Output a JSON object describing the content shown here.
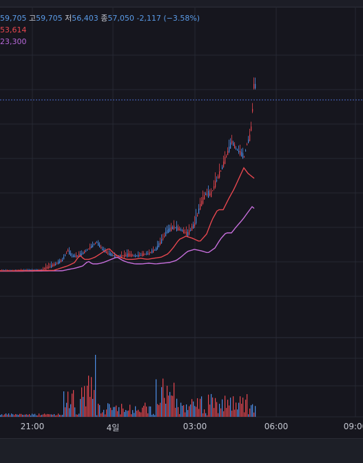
{
  "legend": {
    "open_value": "59,705",
    "high_key": "고",
    "high_value": "59,705",
    "low_key": "저",
    "low_value": "56,403",
    "close_key": "종",
    "close_value": "57,050",
    "change": "-2,117",
    "change_pct": "(−3.58%)",
    "ma1": "53,614",
    "ma2": "23,300"
  },
  "colors": {
    "background": "#16161e",
    "up": "#e8474f",
    "down": "#4e8fe8",
    "ma1": "#e8474f",
    "ma2": "#c86fdd",
    "grid": "#262833",
    "price_line": "#4e6fd0"
  },
  "chart_data": {
    "type": "candlestick-with-volume",
    "x_ticks": [
      "21:00",
      "4일",
      "03:00",
      "06:00",
      "09:00"
    ],
    "current_price": 57050,
    "price_range_visible": [
      0,
      64000
    ],
    "series": [
      {
        "name": "price",
        "shape": "flat until ~01:30, rising steeply into ~05:30 peak",
        "last_close": 57050
      },
      {
        "name": "MA1",
        "last_value": 53614
      },
      {
        "name": "MA2",
        "last_value": 23300
      }
    ],
    "volume": {
      "note": "spikes near 23:30 and 01:30–02:00, moderate after 03:00"
    }
  }
}
